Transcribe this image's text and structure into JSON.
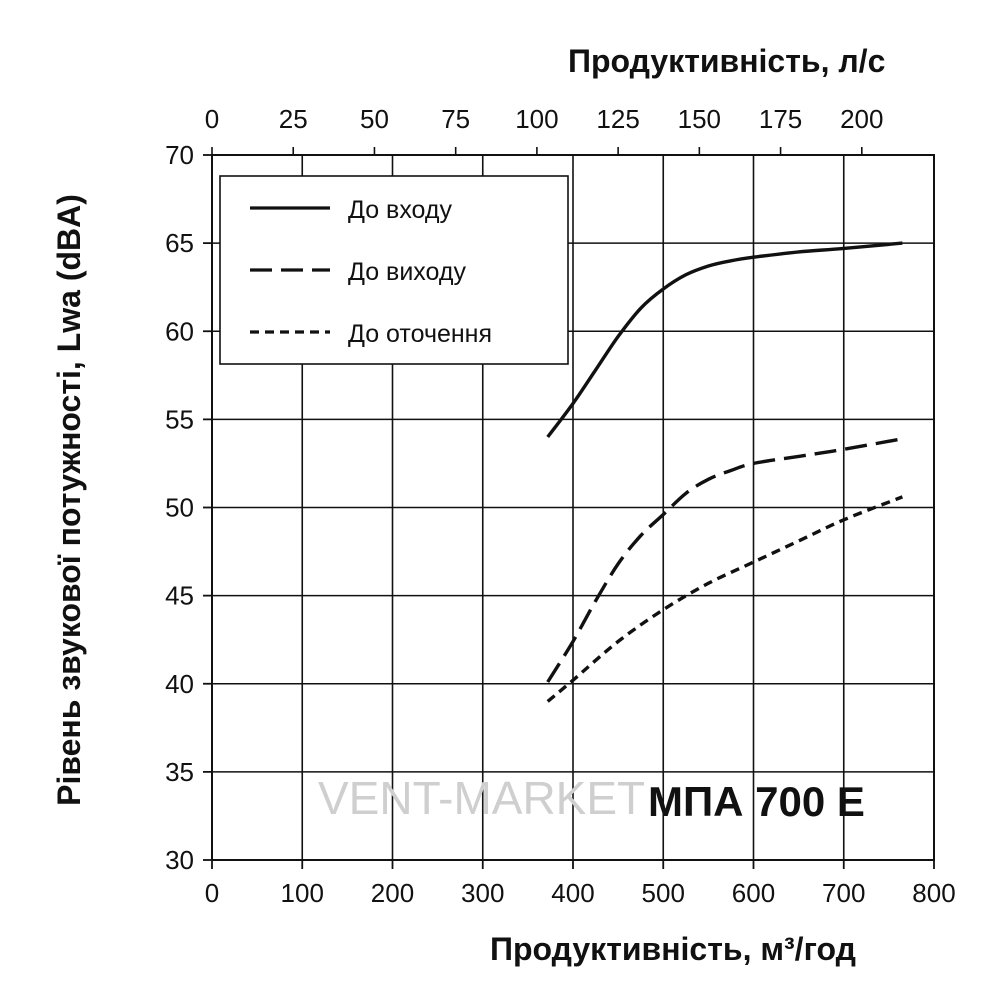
{
  "chart_data": {
    "type": "line",
    "xlabel": "Продуктивність, м³/год",
    "x2label": "Продуктивність, л/с",
    "ylabel": "Рівень звукової потужності, Lwa (dBA)",
    "xlim": [
      0,
      800
    ],
    "ylim": [
      30,
      70
    ],
    "x_ticks": [
      "0",
      "100",
      "200",
      "300",
      "400",
      "500",
      "600",
      "700",
      "800"
    ],
    "y_ticks": [
      "30",
      "35",
      "40",
      "45",
      "50",
      "55",
      "60",
      "65",
      "70"
    ],
    "x2_ticks": [
      "0",
      "25",
      "50",
      "75",
      "100",
      "125",
      "150",
      "175",
      "200"
    ],
    "grid": true,
    "legend_position": "top-left",
    "model_label": "МПА 700 Е",
    "watermark": "VENT-MARKET",
    "series": [
      {
        "name": "До входу",
        "style": "solid",
        "color": "#111111",
        "x": [
          372,
          400,
          425,
          450,
          475,
          500,
          525,
          550,
          575,
          600,
          650,
          700,
          765
        ],
        "y": [
          54.0,
          55.9,
          57.8,
          59.7,
          61.3,
          62.4,
          63.2,
          63.7,
          64.0,
          64.2,
          64.5,
          64.7,
          65.0
        ]
      },
      {
        "name": "До виходу",
        "style": "long-dash",
        "color": "#111111",
        "x": [
          372,
          400,
          425,
          450,
          475,
          500,
          525,
          550,
          575,
          600,
          650,
          700,
          765
        ],
        "y": [
          40.1,
          42.4,
          44.7,
          46.8,
          48.4,
          49.6,
          50.8,
          51.6,
          52.1,
          52.5,
          52.9,
          53.3,
          53.9
        ]
      },
      {
        "name": "До оточення",
        "style": "short-dash",
        "color": "#111111",
        "x": [
          372,
          400,
          450,
          500,
          550,
          600,
          650,
          700,
          765
        ],
        "y": [
          39.0,
          40.2,
          42.4,
          44.2,
          45.7,
          46.9,
          48.1,
          49.3,
          50.6
        ]
      }
    ]
  }
}
